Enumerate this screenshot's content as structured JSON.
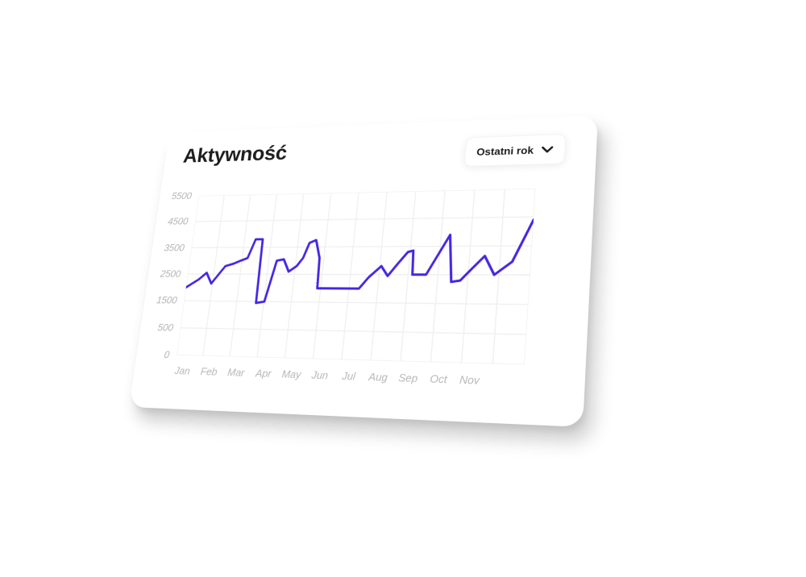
{
  "card": {
    "title": "Aktywność",
    "dropdown": {
      "label": "Ostatni rok",
      "icon": "chevron-down-icon"
    }
  },
  "chart_data": {
    "type": "line",
    "title": "Aktywność",
    "xlabel": "",
    "ylabel": "",
    "x_tick_labels": [
      "Jan",
      "Feb",
      "Mar",
      "Apr",
      "May",
      "Jun",
      "Jul",
      "Aug",
      "Sep",
      "Oct",
      "Nov"
    ],
    "y_tick_labels": [
      "5500",
      "4500",
      "3500",
      "2500",
      "1500",
      "500",
      "0"
    ],
    "y_gridline_values": [
      5500,
      4500,
      3500,
      2500,
      1500,
      500,
      0
    ],
    "x_range_months": 12,
    "grid": true,
    "legend": "none",
    "line_color": "#4527e2",
    "grid_color": "#f0f0f0",
    "tick_label_color": "#b3b3b3",
    "series_name": "Aktywność",
    "points": [
      [
        0.0,
        2000
      ],
      [
        0.45,
        2300
      ],
      [
        0.72,
        2550
      ],
      [
        0.95,
        2150
      ],
      [
        1.4,
        2800
      ],
      [
        1.72,
        2900
      ],
      [
        1.95,
        3000
      ],
      [
        2.2,
        3100
      ],
      [
        2.42,
        3800
      ],
      [
        2.68,
        3800
      ],
      [
        2.72,
        1450
      ],
      [
        3.02,
        1500
      ],
      [
        3.3,
        3000
      ],
      [
        3.55,
        3050
      ],
      [
        3.78,
        2600
      ],
      [
        4.05,
        2800
      ],
      [
        4.25,
        3100
      ],
      [
        4.42,
        3650
      ],
      [
        4.65,
        3750
      ],
      [
        4.84,
        3100
      ],
      [
        4.88,
        2000
      ],
      [
        5.6,
        2000
      ],
      [
        6.35,
        2000
      ],
      [
        6.65,
        2400
      ],
      [
        7.05,
        2800
      ],
      [
        7.3,
        2450
      ],
      [
        7.62,
        2900
      ],
      [
        7.92,
        3300
      ],
      [
        8.1,
        3350
      ],
      [
        8.14,
        2500
      ],
      [
        8.6,
        2500
      ],
      [
        9.3,
        3900
      ],
      [
        9.46,
        2250
      ],
      [
        9.75,
        2300
      ],
      [
        10.1,
        2700
      ],
      [
        10.5,
        3150
      ],
      [
        10.85,
        2500
      ],
      [
        11.4,
        2950
      ],
      [
        12.0,
        4400
      ]
    ]
  }
}
